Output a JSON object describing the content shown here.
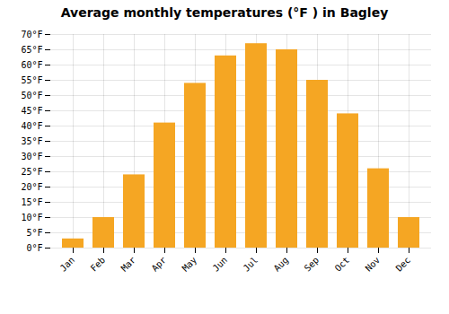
{
  "chart_data": {
    "type": "bar",
    "title": "Average monthly temperatures (°F ) in Bagley",
    "categories": [
      "Jan",
      "Feb",
      "Mar",
      "Apr",
      "May",
      "Jun",
      "Jul",
      "Aug",
      "Sep",
      "Oct",
      "Nov",
      "Dec"
    ],
    "values": [
      3,
      10,
      24,
      41,
      54,
      63,
      67,
      65,
      55,
      44,
      26,
      10
    ],
    "color": "#F5A623",
    "ylim": [
      0,
      70
    ],
    "yticks": [
      {
        "value": 0,
        "label": "0°F"
      },
      {
        "value": 5,
        "label": "5°F"
      },
      {
        "value": 10,
        "label": "10°F"
      },
      {
        "value": 15,
        "label": "15°F"
      },
      {
        "value": 20,
        "label": "20°F"
      },
      {
        "value": 25,
        "label": "25°F"
      },
      {
        "value": 30,
        "label": "30°F"
      },
      {
        "value": 35,
        "label": "35°F"
      },
      {
        "value": 40,
        "label": "40°F"
      },
      {
        "value": 45,
        "label": "45°F"
      },
      {
        "value": 50,
        "label": "50°F"
      },
      {
        "value": 55,
        "label": "55°F"
      },
      {
        "value": 60,
        "label": "60°F"
      },
      {
        "value": 65,
        "label": "65°F"
      },
      {
        "value": 70,
        "label": "70°F"
      }
    ],
    "grid": true
  }
}
